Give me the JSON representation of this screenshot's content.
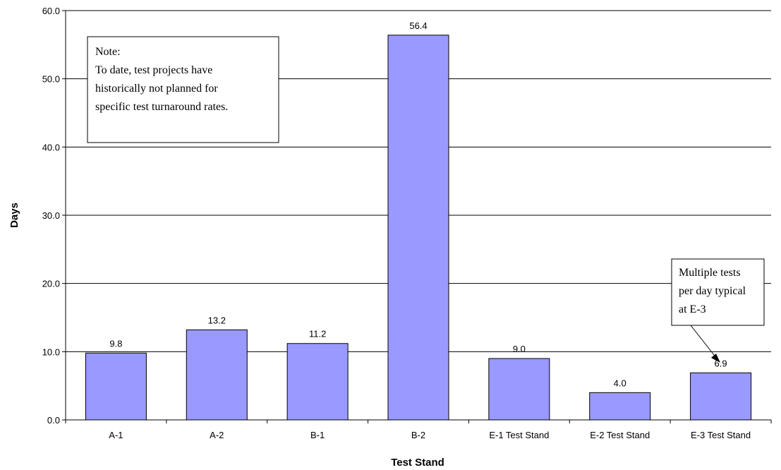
{
  "chart_data": {
    "type": "bar",
    "categories": [
      "A-1",
      "A-2",
      "B-1",
      "B-2",
      "E-1 Test Stand",
      "E-2 Test Stand",
      "E-3 Test Stand"
    ],
    "values": [
      9.8,
      13.2,
      11.2,
      56.4,
      9.0,
      4.0,
      6.9
    ],
    "data_labels": [
      "9.8",
      "13.2",
      "11.2",
      "56.4",
      "9.0",
      "4.0",
      "6.9"
    ],
    "xlabel": "Test Stand",
    "ylabel": "Days",
    "ylim": [
      0,
      60
    ],
    "yticks": [
      "0.0",
      "10.0",
      "20.0",
      "30.0",
      "40.0",
      "50.0",
      "60.0"
    ],
    "ytick_values": [
      0,
      10,
      20,
      30,
      40,
      50,
      60
    ],
    "grid": true,
    "bar_color": "#9999ff",
    "annotations": {
      "note_lines": [
        "Note:",
        "To date, test projects have",
        "historically not planned for",
        "specific test turnaround rates."
      ],
      "callout_lines": [
        "Multiple tests",
        "per day typical",
        "at E-3"
      ],
      "callout_target_category": "E-3 Test Stand"
    }
  }
}
